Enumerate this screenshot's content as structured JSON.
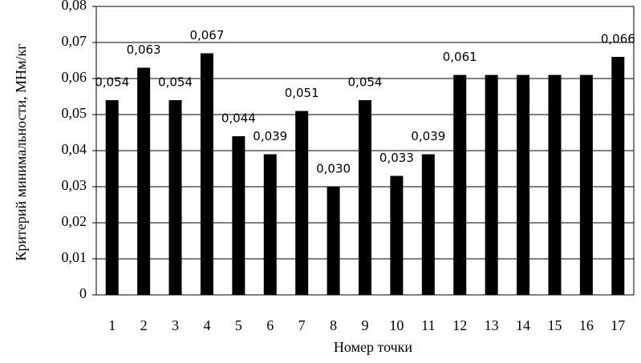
{
  "chart_data": {
    "type": "bar",
    "x_label": "Номер точки",
    "y_label": "Критерий минимальности, МНм/кг",
    "categories": [
      "1",
      "2",
      "3",
      "4",
      "5",
      "6",
      "7",
      "8",
      "9",
      "10",
      "11",
      "12",
      "13",
      "14",
      "15",
      "16",
      "17"
    ],
    "values": [
      0.054,
      0.063,
      0.054,
      0.067,
      0.044,
      0.039,
      0.051,
      0.03,
      0.054,
      0.033,
      0.039,
      0.061,
      0.061,
      0.061,
      0.061,
      0.061,
      0.066
    ],
    "value_labels": [
      "0,054",
      "0,063",
      "0,054",
      "0,067",
      "0,044",
      "0,039",
      "0,051",
      "0,030",
      "0,054",
      "0,033",
      "0,039",
      "0,061",
      null,
      null,
      null,
      null,
      "0,066"
    ],
    "color": "#000000",
    "ylim": [
      0,
      0.08
    ],
    "yticks": [
      0,
      {
        "value": 0.01,
        "label": "0,01"
      },
      {
        "value": 0.02,
        "label": "0,02"
      },
      {
        "value": 0.03,
        "label": "0,03"
      },
      {
        "value": 0.04,
        "label": "0,04"
      },
      {
        "value": 0.05,
        "label": "0,05"
      },
      {
        "value": 0.06,
        "label": "0,06"
      },
      {
        "value": 0.07,
        "label": "0,07"
      },
      {
        "value": 0.08,
        "label": "0,08"
      }
    ],
    "grid": true
  }
}
